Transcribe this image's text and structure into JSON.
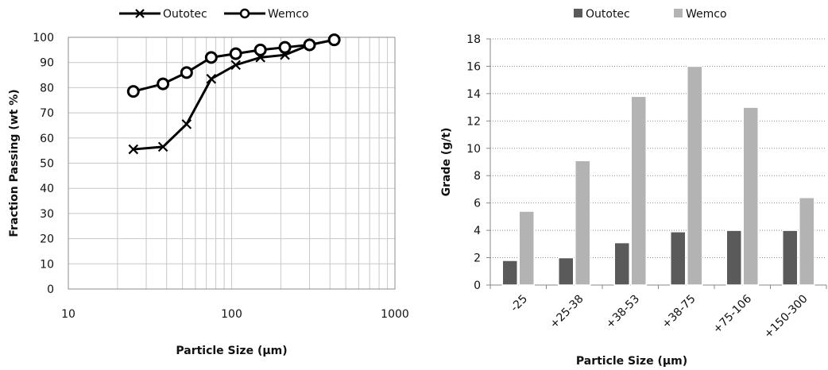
{
  "chart_data": [
    {
      "type": "line",
      "xscale": "log",
      "xlabel": "Particle Size (µm)",
      "ylabel": "Fraction Passing (wt %)",
      "xlim": [
        10,
        1000
      ],
      "ylim": [
        0,
        100
      ],
      "xticks": [
        "10",
        "100",
        "1000"
      ],
      "yticks": [
        "0",
        "10",
        "20",
        "30",
        "40",
        "50",
        "60",
        "70",
        "80",
        "90",
        "100"
      ],
      "grid": true,
      "legend_position": "top",
      "series": [
        {
          "name": "Outotec",
          "marker": "x",
          "x": [
            25,
            38,
            53,
            75,
            106,
            150,
            212,
            300,
            425
          ],
          "y": [
            55.5,
            56.5,
            65.5,
            83.5,
            89,
            92,
            93,
            97,
            99
          ]
        },
        {
          "name": "Wemco",
          "marker": "circle",
          "x": [
            25,
            38,
            53,
            75,
            106,
            150,
            212,
            300,
            425
          ],
          "y": [
            78.5,
            81.5,
            86,
            92,
            93.5,
            95,
            96,
            97,
            99
          ]
        }
      ]
    },
    {
      "type": "bar",
      "xlabel": "Particle Size (µm)",
      "ylabel": "Grade (g/t)",
      "ylim": [
        0,
        18
      ],
      "yticks": [
        "0",
        "2",
        "4",
        "6",
        "8",
        "10",
        "12",
        "14",
        "16",
        "18"
      ],
      "grid": true,
      "legend_position": "top",
      "categories": [
        "-25",
        "+25-38",
        "+38-53",
        "+38-75",
        "+75-106",
        "+150-300"
      ],
      "series": [
        {
          "name": "Outotec",
          "color": "#5a5a5a",
          "values": [
            1.8,
            2.0,
            3.1,
            3.9,
            4.0,
            4.0
          ]
        },
        {
          "name": "Wemco",
          "color": "#b3b3b3",
          "values": [
            5.4,
            9.1,
            13.8,
            16.0,
            13.0,
            6.4
          ]
        }
      ]
    }
  ]
}
